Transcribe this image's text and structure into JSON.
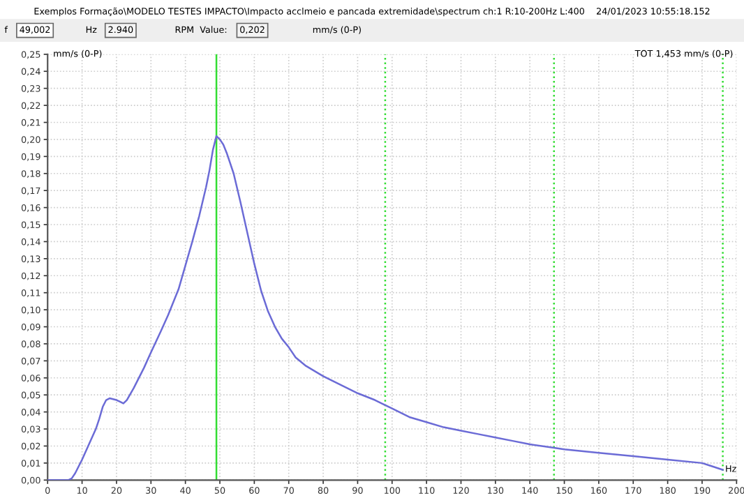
{
  "chart_data": {
    "type": "line",
    "title": "Exemplos Formação\\MODELO TESTES IMPACTO\\Impacto acclmeio e pancada extremidade\\spectrum ch:1 R:10-200Hz L:400    24/01/2023 10:55:18.152",
    "xlabel": "Hz",
    "ylabel": "mm/s (0-P)",
    "annotations": [
      "f",
      "49,002",
      "Hz",
      "2.940",
      "RPM  Value:",
      "0,202",
      "mm/s (0-P)",
      "TOT 1,453 mm/s (0-P)"
    ],
    "series": [
      {
        "color": "#6b6bd6",
        "x": [
          0,
          6,
          7,
          8,
          10,
          12,
          14,
          15,
          16,
          17,
          18,
          20,
          21,
          22,
          23,
          25,
          28,
          30,
          33,
          35,
          38,
          40,
          42,
          44,
          46,
          47,
          48,
          49,
          50,
          51,
          52,
          54,
          56,
          58,
          60,
          62,
          64,
          66,
          68,
          70,
          72,
          75,
          80,
          85,
          90,
          95,
          98,
          100,
          105,
          110,
          115,
          120,
          125,
          130,
          135,
          140,
          147,
          150,
          160,
          170,
          180,
          190,
          196
        ],
        "values": [
          0,
          0,
          0.001,
          0.004,
          0.012,
          0.021,
          0.03,
          0.036,
          0.043,
          0.047,
          0.048,
          0.047,
          0.046,
          0.045,
          0.047,
          0.054,
          0.066,
          0.075,
          0.088,
          0.097,
          0.112,
          0.126,
          0.14,
          0.155,
          0.172,
          0.182,
          0.194,
          0.202,
          0.2,
          0.197,
          0.192,
          0.18,
          0.163,
          0.145,
          0.127,
          0.111,
          0.099,
          0.09,
          0.083,
          0.078,
          0.072,
          0.067,
          0.061,
          0.056,
          0.051,
          0.047,
          0.044,
          0.042,
          0.037,
          0.034,
          0.031,
          0.029,
          0.027,
          0.025,
          0.023,
          0.021,
          0.019,
          0.018,
          0.016,
          0.014,
          0.012,
          0.01,
          0.006
        ]
      }
    ],
    "xlim": [
      0,
      200
    ],
    "xticks": [
      0,
      10,
      20,
      30,
      40,
      50,
      60,
      70,
      80,
      90,
      100,
      110,
      120,
      130,
      140,
      150,
      160,
      170,
      180,
      190,
      200
    ],
    "ylim": [
      0,
      0.25
    ],
    "yticks": [
      {
        "value": 0,
        "label": "0,00"
      },
      {
        "value": 0.01,
        "label": "0,01"
      },
      {
        "value": 0.02,
        "label": "0,02"
      },
      {
        "value": 0.03,
        "label": "0,03"
      },
      {
        "value": 0.04,
        "label": "0,04"
      },
      {
        "value": 0.05,
        "label": "0,05"
      },
      {
        "value": 0.06,
        "label": "0,06"
      },
      {
        "value": 0.07,
        "label": "0,07"
      },
      {
        "value": 0.08,
        "label": "0,08"
      },
      {
        "value": 0.09,
        "label": "0,09"
      },
      {
        "value": 0.1,
        "label": "0,10"
      },
      {
        "value": 0.11,
        "label": "0,11"
      },
      {
        "value": 0.12,
        "label": "0,12"
      },
      {
        "value": 0.13,
        "label": "0,13"
      },
      {
        "value": 0.14,
        "label": "0,14"
      },
      {
        "value": 0.15,
        "label": "0,15"
      },
      {
        "value": 0.16,
        "label": "0,16"
      },
      {
        "value": 0.17,
        "label": "0,17"
      },
      {
        "value": 0.18,
        "label": "0,18"
      },
      {
        "value": 0.19,
        "label": "0,19"
      },
      {
        "value": 0.2,
        "label": "0,20"
      },
      {
        "value": 0.21,
        "label": "0,21"
      },
      {
        "value": 0.22,
        "label": "0,22"
      },
      {
        "value": 0.23,
        "label": "0,23"
      },
      {
        "value": 0.24,
        "label": "0,24"
      },
      {
        "value": 0.25,
        "label": "0,25"
      }
    ],
    "ref_lines": [
      {
        "axis": "x",
        "value": 49,
        "color": "#33dd33",
        "line_style": "solid"
      },
      {
        "axis": "x",
        "value": 98,
        "color": "#33dd33",
        "line_style": "dotted"
      },
      {
        "axis": "x",
        "value": 147,
        "color": "#33dd33",
        "line_style": "dotted"
      },
      {
        "axis": "x",
        "value": 196,
        "color": "#33dd33",
        "line_style": "dotted"
      }
    ],
    "grid": true,
    "marker": "none",
    "line_style": "solid"
  }
}
